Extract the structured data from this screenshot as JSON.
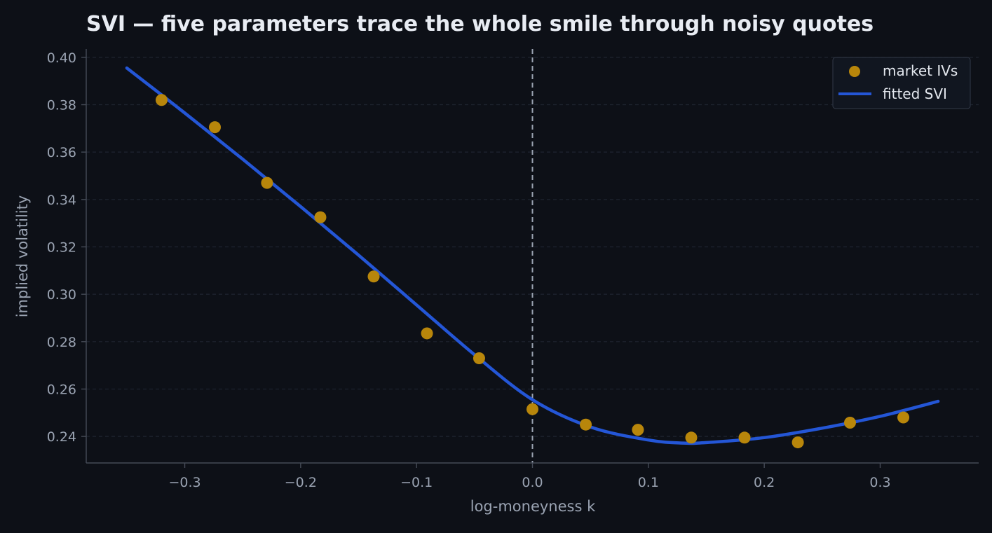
{
  "chart_data": {
    "type": "scatter",
    "title": "SVI — five parameters trace the whole smile through noisy quotes",
    "xlabel": "log-moneyness k",
    "ylabel": "implied volatility",
    "xlim": [
      -0.385,
      0.385
    ],
    "ylim": [
      0.2288,
      0.4035
    ],
    "xticks": [
      -0.3,
      -0.2,
      -0.1,
      0.0,
      0.1,
      0.2,
      0.3
    ],
    "xtick_labels": [
      "−0.3",
      "−0.2",
      "−0.1",
      "0.0",
      "0.1",
      "0.2",
      "0.3"
    ],
    "yticks": [
      0.24,
      0.26,
      0.28,
      0.3,
      0.32,
      0.34,
      0.36,
      0.38,
      0.4
    ],
    "ytick_labels": [
      "0.24",
      "0.26",
      "0.28",
      "0.30",
      "0.32",
      "0.34",
      "0.36",
      "0.38",
      "0.40"
    ],
    "grid": "horizontal dashed",
    "legend_position": "top-right",
    "reference_line": {
      "x": 0.0,
      "style": "dashed"
    },
    "series": [
      {
        "name": "market IVs",
        "kind": "scatter",
        "color": "#b8860b",
        "x": [
          -0.32,
          -0.274,
          -0.229,
          -0.183,
          -0.137,
          -0.091,
          -0.046,
          0.0,
          0.046,
          0.091,
          0.137,
          0.183,
          0.229,
          0.274,
          0.32
        ],
        "y": [
          0.382,
          0.3705,
          0.347,
          0.3325,
          0.3075,
          0.2835,
          0.273,
          0.2515,
          0.245,
          0.2428,
          0.2395,
          0.2395,
          0.2375,
          0.2458,
          0.248
        ]
      },
      {
        "name": "fitted SVI",
        "kind": "line",
        "color": "#2456d6",
        "x": [
          -0.35,
          -0.3,
          -0.25,
          -0.2,
          -0.15,
          -0.1,
          -0.05,
          0.0,
          0.05,
          0.1,
          0.13,
          0.15,
          0.2,
          0.25,
          0.3,
          0.35
        ],
        "y": [
          0.3955,
          0.3765,
          0.357,
          0.337,
          0.3165,
          0.2955,
          0.2745,
          0.2555,
          0.244,
          0.2385,
          0.2372,
          0.2374,
          0.2395,
          0.2435,
          0.2485,
          0.2548
        ]
      }
    ]
  },
  "colors": {
    "background": "#0d1017",
    "text_muted": "#9aa3b2",
    "title": "#e8ecf3",
    "spine": "#454b57",
    "grid": "#1f2430",
    "reference_line": "#9aa3b2",
    "legend_bg": "#111620",
    "legend_border": "#2c3340"
  }
}
